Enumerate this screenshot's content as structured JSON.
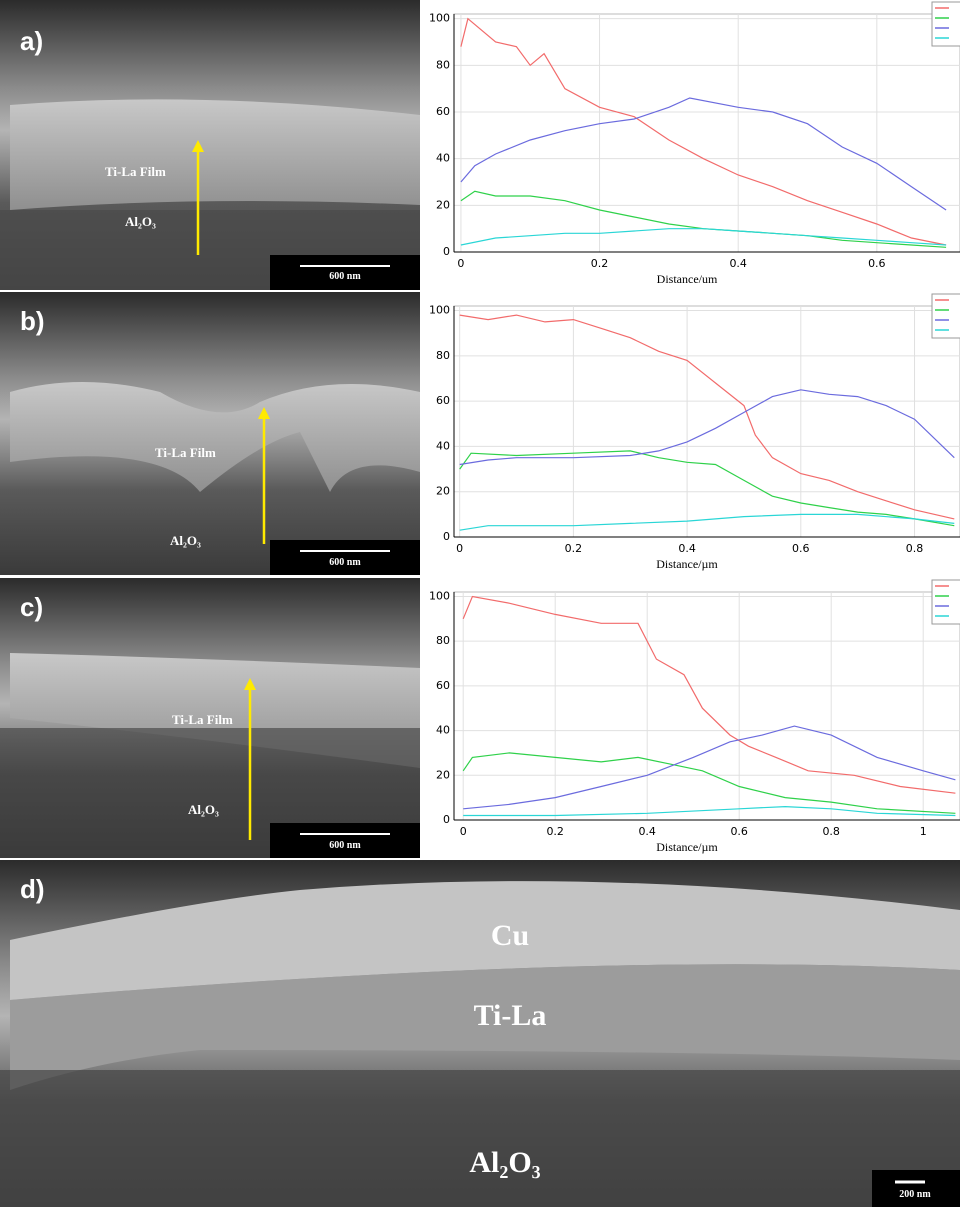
{
  "images": [
    {
      "label": "a)",
      "film": "Ti-La Film",
      "substrate": "Al₂O₃",
      "scale_bar": "600 nm"
    },
    {
      "label": "b)",
      "film": "Ti-La Film",
      "substrate": "Al₂O₃",
      "scale_bar": "600 nm"
    },
    {
      "label": "c)",
      "film": "Ti-La Film",
      "substrate": "Al₂O₃",
      "scale_bar": "600 nm"
    },
    {
      "label": "d)",
      "top_layer": "Cu",
      "film": "Ti-La",
      "substrate": "Al₂O₃",
      "scale_bar": "200 nm"
    }
  ],
  "chart_data": [
    {
      "type": "line",
      "x_label": "Distance/um",
      "xlim": [
        -0.01,
        0.72
      ],
      "xticks": [
        0,
        0.2,
        0.4,
        0.6
      ],
      "ylim": [
        0,
        102
      ],
      "yticks": [
        0,
        20,
        40,
        60,
        80,
        100
      ],
      "grid": true,
      "series": [
        {
          "color": "#f26b6b",
          "x": [
            0,
            0.01,
            0.05,
            0.08,
            0.1,
            0.12,
            0.15,
            0.2,
            0.25,
            0.3,
            0.35,
            0.4,
            0.45,
            0.5,
            0.55,
            0.6,
            0.65,
            0.7
          ],
          "values": [
            88,
            100,
            90,
            88,
            80,
            85,
            70,
            62,
            58,
            48,
            40,
            33,
            28,
            22,
            17,
            12,
            6,
            3
          ]
        },
        {
          "color": "#2fd14a",
          "x": [
            0,
            0.02,
            0.05,
            0.1,
            0.15,
            0.2,
            0.25,
            0.3,
            0.35,
            0.4,
            0.45,
            0.5,
            0.55,
            0.6,
            0.65,
            0.7
          ],
          "values": [
            22,
            26,
            24,
            24,
            22,
            18,
            15,
            12,
            10,
            9,
            8,
            7,
            5,
            4,
            3,
            2
          ]
        },
        {
          "color": "#6b6bde",
          "x": [
            0,
            0.02,
            0.05,
            0.1,
            0.15,
            0.2,
            0.25,
            0.3,
            0.33,
            0.4,
            0.45,
            0.5,
            0.55,
            0.6,
            0.65,
            0.7
          ],
          "values": [
            30,
            37,
            42,
            48,
            52,
            55,
            57,
            62,
            66,
            62,
            60,
            55,
            45,
            38,
            28,
            18
          ]
        },
        {
          "color": "#2ad6d6",
          "x": [
            0,
            0.05,
            0.1,
            0.15,
            0.2,
            0.25,
            0.3,
            0.35,
            0.4,
            0.45,
            0.5,
            0.55,
            0.6,
            0.65,
            0.7
          ],
          "values": [
            3,
            6,
            7,
            8,
            8,
            9,
            10,
            10,
            9,
            8,
            7,
            6,
            5,
            4,
            3
          ]
        }
      ]
    },
    {
      "type": "line",
      "x_label": "Distance/µm",
      "xlim": [
        -0.01,
        0.88
      ],
      "xticks": [
        0,
        0.2,
        0.4,
        0.6,
        0.8
      ],
      "ylim": [
        0,
        102
      ],
      "yticks": [
        0,
        20,
        40,
        60,
        80,
        100
      ],
      "grid": true,
      "series": [
        {
          "color": "#f26b6b",
          "x": [
            0,
            0.05,
            0.1,
            0.15,
            0.2,
            0.25,
            0.3,
            0.35,
            0.4,
            0.45,
            0.5,
            0.52,
            0.55,
            0.6,
            0.65,
            0.7,
            0.75,
            0.8,
            0.87
          ],
          "values": [
            98,
            96,
            98,
            95,
            96,
            92,
            88,
            82,
            78,
            68,
            58,
            45,
            35,
            28,
            25,
            20,
            16,
            12,
            8
          ]
        },
        {
          "color": "#2fd14a",
          "x": [
            0,
            0.02,
            0.1,
            0.2,
            0.3,
            0.35,
            0.4,
            0.45,
            0.5,
            0.55,
            0.6,
            0.65,
            0.7,
            0.75,
            0.8,
            0.87
          ],
          "values": [
            30,
            37,
            36,
            37,
            38,
            35,
            33,
            32,
            25,
            18,
            15,
            13,
            11,
            10,
            8,
            5
          ]
        },
        {
          "color": "#6b6bde",
          "x": [
            0,
            0.05,
            0.1,
            0.2,
            0.3,
            0.35,
            0.4,
            0.45,
            0.5,
            0.55,
            0.6,
            0.65,
            0.7,
            0.75,
            0.8,
            0.87
          ],
          "values": [
            32,
            34,
            35,
            35,
            36,
            38,
            42,
            48,
            55,
            62,
            65,
            63,
            62,
            58,
            52,
            35
          ]
        },
        {
          "color": "#2ad6d6",
          "x": [
            0,
            0.05,
            0.2,
            0.3,
            0.4,
            0.5,
            0.6,
            0.7,
            0.8,
            0.87
          ],
          "values": [
            3,
            5,
            5,
            6,
            7,
            9,
            10,
            10,
            8,
            6
          ]
        }
      ]
    },
    {
      "type": "line",
      "x_label": "Distance/µm",
      "xlim": [
        -0.02,
        1.08
      ],
      "xticks": [
        0,
        0.2,
        0.4,
        0.6,
        0.8,
        1
      ],
      "ylim": [
        0,
        102
      ],
      "yticks": [
        0,
        20,
        40,
        60,
        80,
        100
      ],
      "grid": true,
      "series": [
        {
          "color": "#f26b6b",
          "x": [
            0,
            0.02,
            0.1,
            0.2,
            0.3,
            0.38,
            0.42,
            0.48,
            0.52,
            0.58,
            0.62,
            0.68,
            0.75,
            0.85,
            0.95,
            1.07
          ],
          "values": [
            90,
            100,
            97,
            92,
            88,
            88,
            72,
            65,
            50,
            38,
            33,
            28,
            22,
            20,
            15,
            12
          ]
        },
        {
          "color": "#2fd14a",
          "x": [
            0,
            0.02,
            0.1,
            0.2,
            0.3,
            0.38,
            0.45,
            0.52,
            0.6,
            0.7,
            0.8,
            0.9,
            1.07
          ],
          "values": [
            22,
            28,
            30,
            28,
            26,
            28,
            25,
            22,
            15,
            10,
            8,
            5,
            3
          ]
        },
        {
          "color": "#6b6bde",
          "x": [
            0,
            0.1,
            0.2,
            0.3,
            0.4,
            0.5,
            0.58,
            0.65,
            0.72,
            0.8,
            0.9,
            1,
            1.07
          ],
          "values": [
            5,
            7,
            10,
            15,
            20,
            28,
            35,
            38,
            42,
            38,
            28,
            22,
            18
          ]
        },
        {
          "color": "#2ad6d6",
          "x": [
            0,
            0.2,
            0.4,
            0.6,
            0.7,
            0.8,
            0.9,
            1.07
          ],
          "values": [
            2,
            2,
            3,
            5,
            6,
            5,
            3,
            2
          ]
        }
      ]
    }
  ]
}
